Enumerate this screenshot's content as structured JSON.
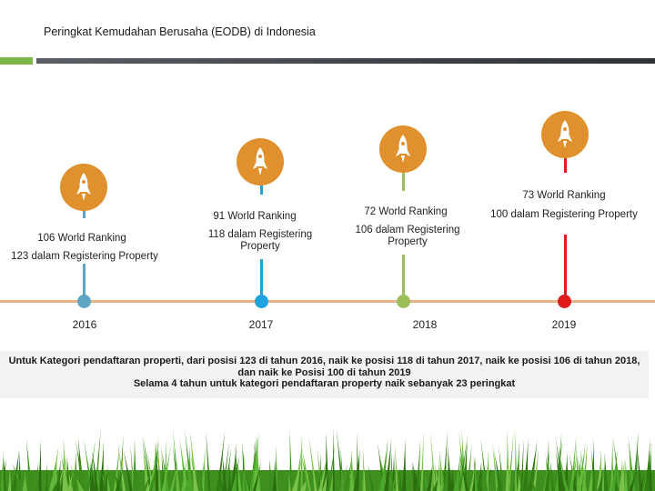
{
  "title": "Peringkat Kemudahan Berusaha (EODB) di Indonesia",
  "colors": {
    "timeline": "#e6b38a",
    "medal": "#e0912e",
    "y2016": "#5fa6c6",
    "y2017": "#1fa3e0",
    "y2018": "#9bbf5a",
    "y2019": "#e01b1b"
  },
  "milestones": [
    {
      "year": "2016",
      "world": "106 World Ranking",
      "registering": "123 dalam Registering Property"
    },
    {
      "year": "2017",
      "world": "91 World Ranking",
      "registering": "118 dalam Registering Property"
    },
    {
      "year": "2018",
      "world": "72 World Ranking",
      "registering": "106 dalam Registering Property"
    },
    {
      "year": "2019",
      "world": "73 World Ranking",
      "registering": "100 dalam Registering Property"
    }
  ],
  "summary": {
    "line1": "Untuk Kategori pendaftaran properti, dari posisi 123 di tahun 2016, naik ke posisi 118 di tahun 2017, naik ke posisi 106 di tahun 2018, dan naik ke Posisi 100 di tahun 2019",
    "line2": "Selama 4 tahun untuk kategori pendaftaran property naik sebanyak 23 peringkat"
  }
}
